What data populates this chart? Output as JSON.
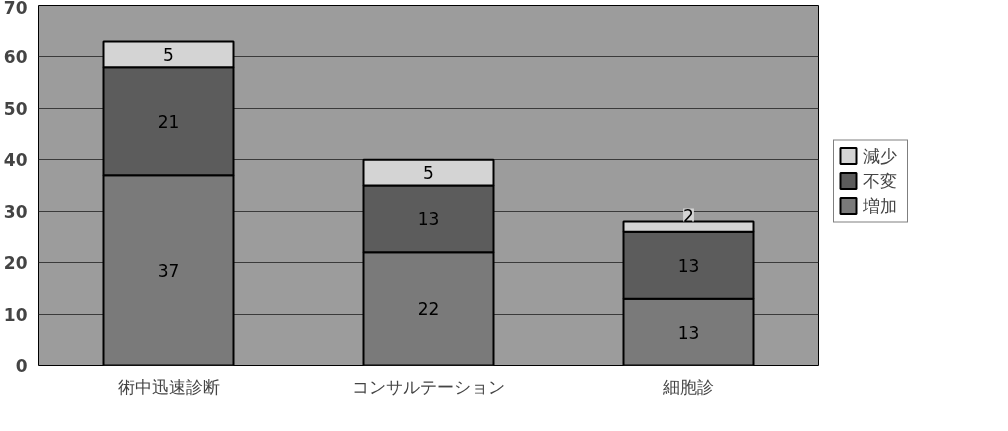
{
  "chart_data": {
    "type": "bar",
    "stacked": true,
    "categories": [
      "術中迅速診断",
      "コンサルテーション",
      "細胞診"
    ],
    "series": [
      {
        "name": "増加",
        "color": "#7a7a7a",
        "values": [
          37,
          22,
          13
        ]
      },
      {
        "name": "不変",
        "color": "#5c5c5c",
        "values": [
          21,
          13,
          13
        ]
      },
      {
        "name": "減少",
        "color": "#d4d4d4",
        "values": [
          5,
          5,
          2
        ]
      }
    ],
    "ylim": [
      0,
      70
    ],
    "yticks": [
      0,
      10,
      20,
      30,
      40,
      50,
      60,
      70
    ],
    "grid": "y",
    "legend": "right",
    "data_labels": true
  }
}
